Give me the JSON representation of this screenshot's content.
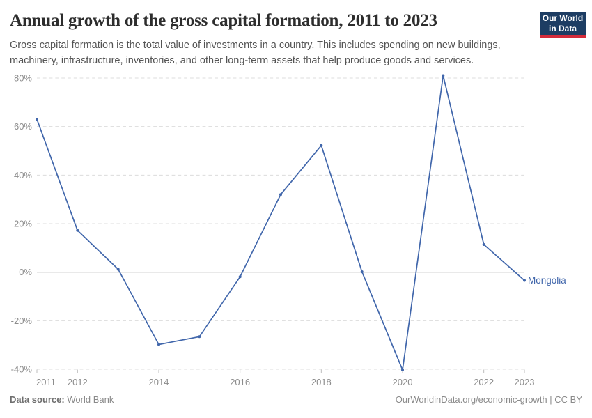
{
  "header": {
    "title": "Annual growth of the gross capital formation, 2011 to 2023",
    "subtitle": "Gross capital formation is the total value of investments in a country. This includes spending on new buildings, machinery, infrastructure, inventories, and other long-term assets that help produce goods and services.",
    "logo": {
      "line1": "Our World",
      "line2": "in Data",
      "bg_color": "#1d3d63",
      "accent_color": "#d42b3a"
    }
  },
  "chart_data": {
    "type": "line",
    "title": "Annual growth of the gross capital formation, 2011 to 2023",
    "xlabel": "",
    "ylabel": "",
    "unit": "%",
    "x": [
      2011,
      2012,
      2013,
      2014,
      2015,
      2016,
      2017,
      2018,
      2019,
      2020,
      2021,
      2022,
      2023
    ],
    "series": [
      {
        "name": "Mongolia",
        "color": "#4066ab",
        "values": [
          63,
          17.2,
          1.2,
          -29.8,
          -26.6,
          -1.9,
          32,
          52.2,
          0.2,
          -40.3,
          81,
          11.4,
          -3.4
        ]
      }
    ],
    "ylim": [
      -40,
      80
    ],
    "ytick_values": [
      80,
      60,
      40,
      20,
      0,
      -20,
      -40
    ],
    "ytick_labels": [
      "80%",
      "60%",
      "40%",
      "20%",
      "0%",
      "-20%",
      "-40%"
    ],
    "xtick_values": [
      2011,
      2012,
      2014,
      2016,
      2018,
      2020,
      2022,
      2023
    ],
    "xtick_labels": [
      "2011",
      "2012",
      "2014",
      "2016",
      "2018",
      "2020",
      "2022",
      "2023"
    ],
    "grid": {
      "horizontal": "dashed",
      "zero_line": "solid",
      "vertical": "none"
    },
    "legend_position": "label at end of line"
  },
  "styles": {
    "line_color": "#4066ab",
    "grid_color": "#dcdcdc",
    "zero_line_color": "#a8a8a8",
    "tick_color": "#bdbdbd",
    "axis_label_color": "#8c8c8c",
    "series_label_color": "#4066ab"
  },
  "footer": {
    "source_label": "Data source:",
    "source_value": "World Bank",
    "credit": "OurWorldinData.org/economic-growth | CC BY"
  }
}
